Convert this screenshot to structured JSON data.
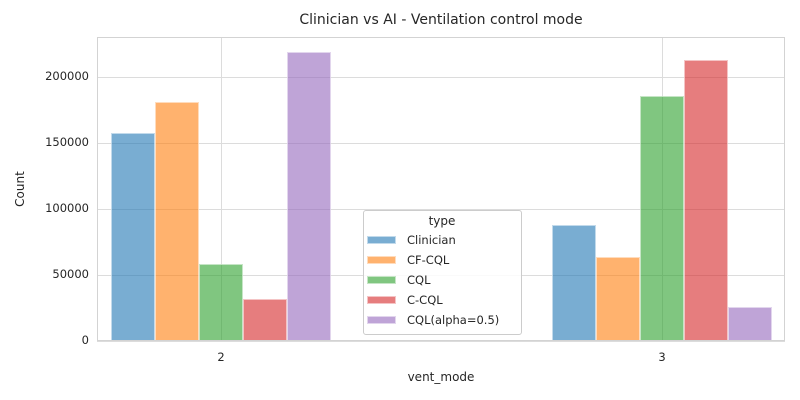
{
  "chart_data": {
    "type": "bar",
    "title": "Clinician vs AI - Ventilation control mode",
    "xlabel": "vent_mode",
    "ylabel": "Count",
    "categories": [
      "2",
      "3"
    ],
    "series": [
      {
        "name": "Clinician",
        "color": "rgba(31,119,180,0.6)",
        "color_hex_on_white": "#79add2",
        "values": [
          157500,
          88000
        ]
      },
      {
        "name": "CF-CQL",
        "color": "rgba(255,127,14,0.6)",
        "color_hex_on_white": "#ffb26e",
        "values": [
          181000,
          64000
        ]
      },
      {
        "name": "CQL",
        "color": "rgba(44,160,44,0.6)",
        "color_hex_on_white": "#80c680",
        "values": [
          58500,
          186000
        ]
      },
      {
        "name": "C-CQL",
        "color": "rgba(214,39,40,0.6)",
        "color_hex_on_white": "#e67e7e",
        "values": [
          32000,
          213000
        ]
      },
      {
        "name": "CQL(alpha=0.5)",
        "color": "rgba(148,103,189,0.6)",
        "color_hex_on_white": "#bfa4d7",
        "values": [
          219000,
          26000
        ]
      }
    ],
    "ylim": [
      0,
      230500
    ],
    "yticks": [
      0,
      50000,
      100000,
      150000,
      200000
    ],
    "ytick_labels": [
      "0",
      "50000",
      "100000",
      "150000",
      "200000"
    ],
    "legend": {
      "title": "type",
      "position": "center"
    },
    "grid": true,
    "style": "whitegrid",
    "colors": {
      "grid": "#dcdcdc",
      "spine": "#d3d3d3",
      "text": "#262626",
      "background": "#ffffff"
    }
  }
}
